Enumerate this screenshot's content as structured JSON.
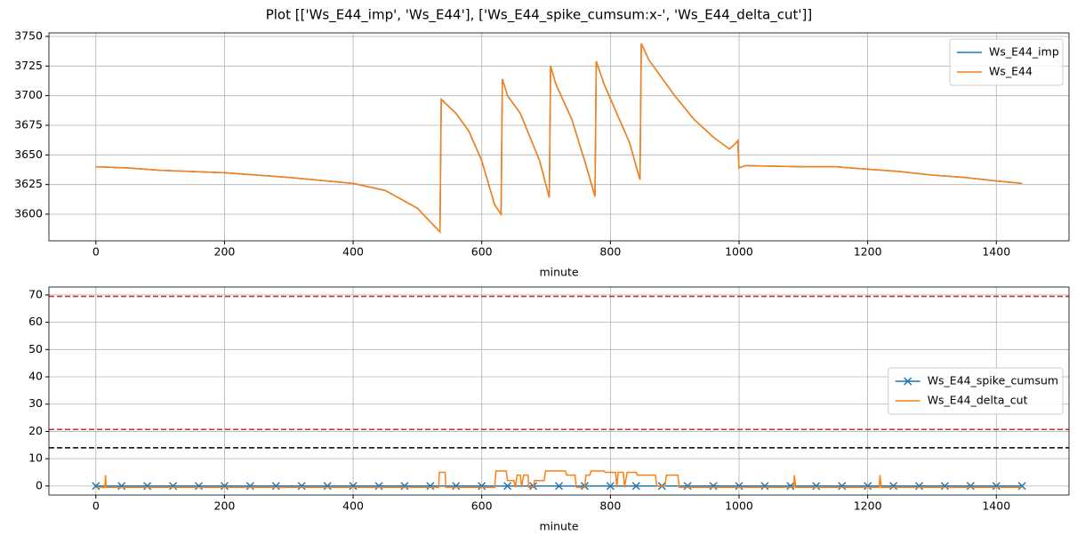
{
  "title": "Plot [['Ws_E44_imp', 'Ws_E44'], ['Ws_E44_spike_cumsum:x-', 'Ws_E44_delta_cut']]",
  "chart_data": [
    {
      "type": "line",
      "xlabel": "minute",
      "xlim": [
        -73,
        1513
      ],
      "ylim": [
        3577.5,
        3753
      ],
      "xticks": [
        0,
        200,
        400,
        600,
        800,
        1000,
        1200,
        1400
      ],
      "yticks": [
        3600,
        3625,
        3650,
        3675,
        3700,
        3725,
        3750
      ],
      "grid": true,
      "legend": "upper right",
      "series": [
        {
          "name": "Ws_E44_imp",
          "color": "#1f77b4",
          "marker": "none",
          "x": [
            0,
            50,
            100,
            200,
            300,
            400,
            450,
            500,
            535,
            537,
            560,
            580,
            600,
            620,
            630,
            632,
            640,
            660,
            690,
            705,
            707,
            715,
            740,
            760,
            776,
            778,
            790,
            810,
            830,
            846,
            848,
            860,
            880,
            900,
            930,
            960,
            985,
            995,
            998,
            1000,
            1010,
            1100,
            1150,
            1200,
            1250,
            1300,
            1350,
            1400,
            1440
          ],
          "values": [
            3640,
            3639,
            3637,
            3635,
            3631,
            3626,
            3620,
            3605,
            3585,
            3697,
            3685,
            3670,
            3645,
            3608,
            3600,
            3714,
            3700,
            3685,
            3645,
            3614,
            3725,
            3710,
            3680,
            3645,
            3615,
            3729,
            3710,
            3685,
            3660,
            3629,
            3744,
            3730,
            3715,
            3700,
            3680,
            3665,
            3655,
            3660,
            3662,
            3639,
            3641,
            3640,
            3640,
            3638,
            3636,
            3633,
            3631,
            3628,
            3626
          ]
        },
        {
          "name": "Ws_E44",
          "color": "#ff7f0e",
          "marker": "none",
          "x": [
            0,
            50,
            100,
            200,
            300,
            400,
            450,
            500,
            535,
            537,
            560,
            580,
            600,
            620,
            630,
            632,
            640,
            660,
            690,
            705,
            707,
            715,
            740,
            760,
            776,
            778,
            790,
            810,
            830,
            846,
            848,
            860,
            880,
            900,
            930,
            960,
            985,
            995,
            998,
            1000,
            1010,
            1100,
            1150,
            1200,
            1250,
            1300,
            1350,
            1400,
            1440
          ],
          "values": [
            3640,
            3639,
            3637,
            3635,
            3631,
            3626,
            3620,
            3605,
            3585,
            3697,
            3685,
            3670,
            3645,
            3608,
            3600,
            3714,
            3700,
            3685,
            3645,
            3614,
            3725,
            3710,
            3680,
            3645,
            3615,
            3729,
            3710,
            3685,
            3660,
            3629,
            3744,
            3730,
            3715,
            3700,
            3680,
            3665,
            3655,
            3660,
            3662,
            3639,
            3641,
            3640,
            3640,
            3638,
            3636,
            3633,
            3631,
            3628,
            3626
          ]
        }
      ]
    },
    {
      "type": "line",
      "xlabel": "minute",
      "xlim": [
        -73,
        1513
      ],
      "ylim": [
        -3.3,
        72.9
      ],
      "xticks": [
        0,
        200,
        400,
        600,
        800,
        1000,
        1200,
        1400
      ],
      "yticks": [
        0,
        10,
        20,
        30,
        40,
        50,
        60,
        70
      ],
      "grid": true,
      "legend": "center right",
      "hlines": [
        {
          "value": 69.5,
          "color": "#d62728"
        },
        {
          "value": 20.7,
          "color": "#d62728"
        },
        {
          "value": 14,
          "color": "#000000"
        }
      ],
      "series": [
        {
          "name": "Ws_E44_spike_cumsum",
          "color": "#1f77b4",
          "marker": "x",
          "x": [
            0,
            40,
            80,
            120,
            160,
            200,
            240,
            280,
            320,
            360,
            400,
            440,
            480,
            520,
            560,
            600,
            640,
            680,
            720,
            760,
            800,
            840,
            880,
            920,
            960,
            1000,
            1040,
            1080,
            1120,
            1160,
            1200,
            1240,
            1280,
            1320,
            1360,
            1400,
            1440
          ],
          "values": [
            0,
            0,
            0,
            0,
            0,
            0,
            0,
            0,
            0,
            0,
            0,
            0,
            0,
            0,
            0,
            0,
            0,
            0,
            0,
            0,
            0,
            0,
            0,
            0,
            0,
            0,
            0,
            0,
            0,
            0,
            0,
            0,
            0,
            0,
            0,
            0,
            0
          ]
        },
        {
          "name": "Ws_E44_delta_cut",
          "color": "#ff7f0e",
          "marker": "none",
          "x": [
            0,
            14,
            15,
            16,
            533,
            534,
            543,
            544,
            620,
            622,
            638,
            640,
            650,
            652,
            655,
            660,
            662,
            665,
            672,
            673,
            680,
            682,
            697,
            699,
            730,
            732,
            745,
            747,
            760,
            762,
            768,
            770,
            790,
            792,
            808,
            810,
            812,
            820,
            822,
            826,
            840,
            842,
            870,
            872,
            885,
            887,
            905,
            907,
            1085,
            1086,
            1088,
            1218,
            1219,
            1221,
            1440
          ],
          "values": [
            -0.5,
            -0.5,
            4,
            -0.5,
            -0.5,
            5,
            5,
            -0.5,
            -0.5,
            5.5,
            5.5,
            2,
            2,
            -0.5,
            4,
            4,
            -0.5,
            4,
            4,
            -0.5,
            -0.5,
            2,
            2,
            5.5,
            5.5,
            4,
            4,
            -0.5,
            -0.5,
            4,
            4,
            5.5,
            5.5,
            5,
            5,
            -0.5,
            5,
            5,
            -0.5,
            5,
            5,
            4,
            4,
            0,
            0,
            4,
            4,
            -0.5,
            -0.5,
            4,
            -0.5,
            -0.5,
            4,
            -0.5,
            -0.5
          ]
        }
      ]
    }
  ]
}
